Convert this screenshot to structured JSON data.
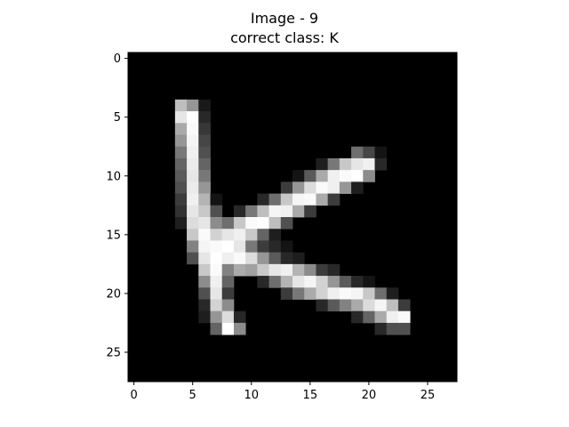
{
  "figure": {
    "title_line1": "Image - 9",
    "title_line2": "correct class: K",
    "background": "#ffffff",
    "axes_frame_color": "#000000"
  },
  "image": {
    "width": 28,
    "height": 28,
    "colormap": "gray",
    "xticks": [
      0,
      5,
      10,
      15,
      20,
      25
    ],
    "yticks": [
      0,
      5,
      10,
      15,
      20,
      25
    ],
    "bright_pixels": [
      [
        4,
        4,
        190
      ],
      [
        5,
        4,
        150
      ],
      [
        6,
        4,
        25
      ],
      [
        4,
        5,
        230
      ],
      [
        5,
        5,
        255
      ],
      [
        6,
        5,
        40
      ],
      [
        4,
        6,
        170
      ],
      [
        5,
        6,
        250
      ],
      [
        6,
        6,
        55
      ],
      [
        4,
        7,
        150
      ],
      [
        5,
        7,
        245
      ],
      [
        6,
        7,
        70
      ],
      [
        4,
        8,
        120
      ],
      [
        5,
        8,
        240
      ],
      [
        6,
        8,
        80
      ],
      [
        19,
        8,
        110
      ],
      [
        20,
        8,
        70
      ],
      [
        21,
        8,
        20
      ],
      [
        4,
        9,
        100
      ],
      [
        5,
        9,
        235
      ],
      [
        6,
        9,
        100
      ],
      [
        16,
        9,
        30
      ],
      [
        17,
        9,
        120
      ],
      [
        18,
        9,
        200
      ],
      [
        19,
        9,
        230
      ],
      [
        20,
        9,
        240
      ],
      [
        21,
        9,
        40
      ],
      [
        4,
        10,
        90
      ],
      [
        5,
        10,
        230
      ],
      [
        6,
        10,
        120
      ],
      [
        14,
        10,
        20
      ],
      [
        15,
        10,
        90
      ],
      [
        16,
        10,
        170
      ],
      [
        17,
        10,
        240
      ],
      [
        18,
        10,
        250
      ],
      [
        19,
        10,
        255
      ],
      [
        20,
        10,
        140
      ],
      [
        4,
        11,
        80
      ],
      [
        5,
        11,
        235
      ],
      [
        6,
        11,
        150
      ],
      [
        13,
        11,
        60
      ],
      [
        14,
        11,
        150
      ],
      [
        15,
        11,
        220
      ],
      [
        16,
        11,
        250
      ],
      [
        17,
        11,
        240
      ],
      [
        18,
        11,
        150
      ],
      [
        19,
        11,
        30
      ],
      [
        4,
        12,
        60
      ],
      [
        5,
        12,
        240
      ],
      [
        6,
        12,
        180
      ],
      [
        7,
        12,
        20
      ],
      [
        11,
        12,
        40
      ],
      [
        12,
        12,
        110
      ],
      [
        13,
        12,
        200
      ],
      [
        14,
        12,
        245
      ],
      [
        15,
        12,
        250
      ],
      [
        16,
        12,
        170
      ],
      [
        17,
        12,
        60
      ],
      [
        4,
        13,
        50
      ],
      [
        5,
        13,
        230
      ],
      [
        6,
        13,
        200
      ],
      [
        7,
        13,
        80
      ],
      [
        9,
        13,
        40
      ],
      [
        10,
        13,
        120
      ],
      [
        11,
        13,
        190
      ],
      [
        12,
        13,
        245
      ],
      [
        13,
        13,
        240
      ],
      [
        14,
        13,
        170
      ],
      [
        15,
        13,
        60
      ],
      [
        4,
        14,
        30
      ],
      [
        5,
        14,
        220
      ],
      [
        6,
        14,
        230
      ],
      [
        7,
        14,
        140
      ],
      [
        8,
        14,
        110
      ],
      [
        9,
        14,
        200
      ],
      [
        10,
        14,
        250
      ],
      [
        11,
        14,
        255
      ],
      [
        12,
        14,
        190
      ],
      [
        13,
        14,
        80
      ],
      [
        5,
        15,
        200
      ],
      [
        6,
        15,
        250
      ],
      [
        7,
        15,
        210
      ],
      [
        8,
        15,
        230
      ],
      [
        9,
        15,
        240
      ],
      [
        10,
        15,
        200
      ],
      [
        11,
        15,
        100
      ],
      [
        12,
        15,
        30
      ],
      [
        5,
        16,
        130
      ],
      [
        6,
        16,
        245
      ],
      [
        7,
        16,
        250
      ],
      [
        8,
        16,
        255
      ],
      [
        9,
        16,
        230
      ],
      [
        10,
        16,
        120
      ],
      [
        11,
        16,
        60
      ],
      [
        12,
        16,
        40
      ],
      [
        13,
        16,
        20
      ],
      [
        5,
        17,
        80
      ],
      [
        6,
        17,
        230
      ],
      [
        7,
        17,
        255
      ],
      [
        8,
        17,
        240
      ],
      [
        9,
        17,
        250
      ],
      [
        10,
        17,
        220
      ],
      [
        11,
        17,
        150
      ],
      [
        12,
        17,
        90
      ],
      [
        13,
        17,
        40
      ],
      [
        14,
        17,
        30
      ],
      [
        6,
        18,
        200
      ],
      [
        7,
        18,
        250
      ],
      [
        8,
        18,
        130
      ],
      [
        9,
        18,
        170
      ],
      [
        10,
        18,
        160
      ],
      [
        11,
        18,
        200
      ],
      [
        12,
        18,
        230
      ],
      [
        13,
        18,
        240
      ],
      [
        14,
        18,
        180
      ],
      [
        15,
        18,
        140
      ],
      [
        16,
        18,
        60
      ],
      [
        17,
        18,
        40
      ],
      [
        6,
        19,
        140
      ],
      [
        7,
        19,
        240
      ],
      [
        8,
        19,
        100
      ],
      [
        11,
        19,
        40
      ],
      [
        12,
        19,
        110
      ],
      [
        13,
        19,
        180
      ],
      [
        14,
        19,
        230
      ],
      [
        15,
        19,
        245
      ],
      [
        16,
        19,
        210
      ],
      [
        17,
        19,
        150
      ],
      [
        18,
        19,
        90
      ],
      [
        19,
        19,
        40
      ],
      [
        20,
        19,
        20
      ],
      [
        6,
        20,
        80
      ],
      [
        7,
        20,
        230
      ],
      [
        8,
        20,
        60
      ],
      [
        13,
        20,
        60
      ],
      [
        14,
        20,
        120
      ],
      [
        15,
        20,
        170
      ],
      [
        16,
        20,
        210
      ],
      [
        17,
        20,
        240
      ],
      [
        18,
        20,
        250
      ],
      [
        19,
        20,
        245
      ],
      [
        20,
        20,
        200
      ],
      [
        21,
        20,
        110
      ],
      [
        22,
        20,
        30
      ],
      [
        6,
        21,
        40
      ],
      [
        7,
        21,
        210
      ],
      [
        8,
        21,
        140
      ],
      [
        16,
        21,
        40
      ],
      [
        17,
        21,
        90
      ],
      [
        18,
        21,
        130
      ],
      [
        19,
        21,
        170
      ],
      [
        20,
        21,
        220
      ],
      [
        21,
        21,
        245
      ],
      [
        22,
        21,
        190
      ],
      [
        23,
        21,
        60
      ],
      [
        6,
        22,
        30
      ],
      [
        7,
        22,
        150
      ],
      [
        8,
        22,
        220
      ],
      [
        9,
        22,
        40
      ],
      [
        19,
        22,
        40
      ],
      [
        20,
        22,
        100
      ],
      [
        21,
        22,
        170
      ],
      [
        22,
        22,
        240
      ],
      [
        23,
        22,
        250
      ],
      [
        7,
        23,
        100
      ],
      [
        8,
        23,
        255
      ],
      [
        9,
        23,
        140
      ],
      [
        21,
        23,
        40
      ],
      [
        22,
        23,
        80
      ],
      [
        23,
        23,
        80
      ]
    ]
  }
}
